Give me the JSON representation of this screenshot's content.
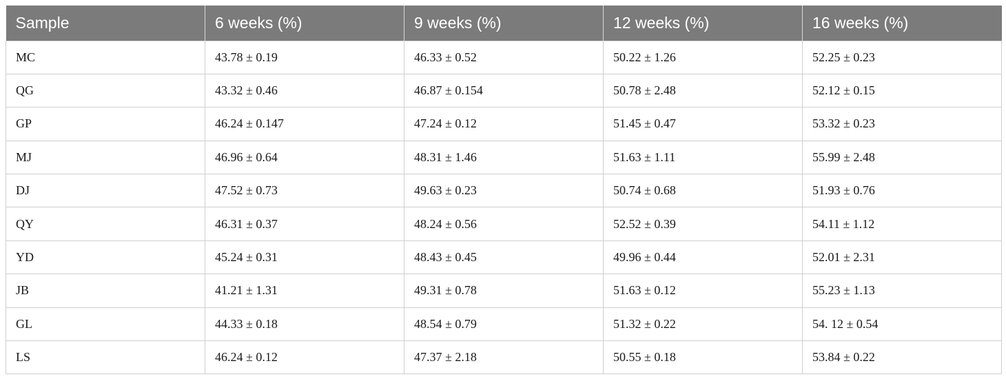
{
  "table": {
    "headers": [
      "Sample",
      "6 weeks (%)",
      "9 weeks (%)",
      "12 weeks (%)",
      "16 weeks (%)"
    ],
    "rows": [
      [
        "MC",
        "43.78 ± 0.19",
        "46.33 ± 0.52",
        "50.22 ± 1.26",
        "52.25 ± 0.23"
      ],
      [
        "QG",
        "43.32 ± 0.46",
        "46.87 ± 0.154",
        "50.78 ± 2.48",
        "52.12 ± 0.15"
      ],
      [
        "GP",
        "46.24 ± 0.147",
        "47.24 ± 0.12",
        "51.45 ± 0.47",
        "53.32 ± 0.23"
      ],
      [
        "MJ",
        "46.96 ± 0.64",
        "48.31 ± 1.46",
        "51.63 ± 1.11",
        "55.99 ± 2.48"
      ],
      [
        "DJ",
        "47.52 ± 0.73",
        "49.63 ± 0.23",
        "50.74 ± 0.68",
        "51.93 ± 0.76"
      ],
      [
        "QY",
        "46.31 ± 0.37",
        "48.24 ± 0.56",
        "52.52 ± 0.39",
        "54.11 ± 1.12"
      ],
      [
        "YD",
        "45.24 ± 0.31",
        "48.43 ± 0.45",
        "49.96 ± 0.44",
        "52.01 ± 2.31"
      ],
      [
        "JB",
        "41.21 ± 1.31",
        "49.31 ± 0.78",
        "51.63 ± 0.12",
        "55.23 ± 1.13"
      ],
      [
        "GL",
        "44.33 ± 0.18",
        "48.54 ± 0.79",
        "51.32 ± 0.22",
        "54. 12 ± 0.54"
      ],
      [
        "LS",
        "46.24 ± 0.12",
        "47.37 ± 2.18",
        "50.55 ± 0.18",
        "53.84 ± 0.22"
      ]
    ]
  },
  "colors": {
    "header_background": "#7b7b7b",
    "header_text": "#ffffff",
    "grid_line": "#cfcfcf"
  }
}
